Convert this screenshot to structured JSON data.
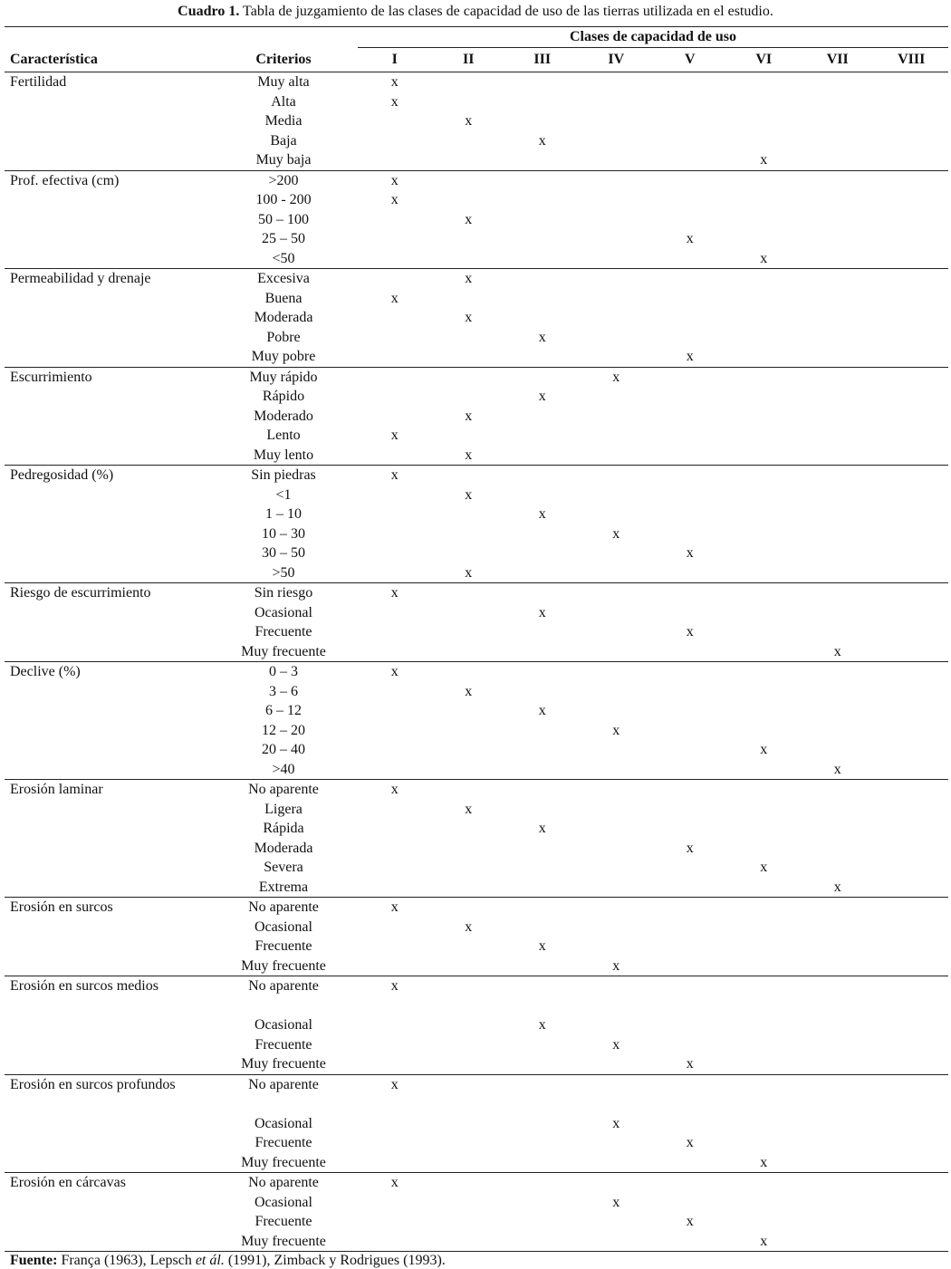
{
  "caption": {
    "label": "Cuadro 1.",
    "text": " Tabla de juzgamiento de las clases de capacidad de uso de las tierras utilizada en el estudio."
  },
  "header": {
    "group_label": "Clases de capacidad de uso",
    "characteristic": "Característica",
    "criteria": "Criterios",
    "classes": [
      "I",
      "II",
      "III",
      "IV",
      "V",
      "VI",
      "VII",
      "VIII"
    ]
  },
  "mark": "x",
  "groups": [
    {
      "characteristic": "Fertilidad",
      "rows": [
        [
          "Muy alta",
          1
        ],
        [
          "Alta",
          1
        ],
        [
          "Media",
          2
        ],
        [
          "Baja",
          3
        ],
        [
          "Muy baja",
          6
        ]
      ]
    },
    {
      "characteristic": "Prof. efectiva (cm)",
      "rows": [
        [
          ">200",
          1
        ],
        [
          "100 - 200",
          1
        ],
        [
          "50 – 100",
          2
        ],
        [
          "25 – 50",
          5
        ],
        [
          "<50",
          6
        ]
      ]
    },
    {
      "characteristic": "Permeabilidad y drenaje",
      "rows": [
        [
          "Excesiva",
          2
        ],
        [
          "Buena",
          1
        ],
        [
          "Moderada",
          2
        ],
        [
          "Pobre",
          3
        ],
        [
          "Muy pobre",
          5
        ]
      ]
    },
    {
      "characteristic": "Escurrimiento",
      "rows": [
        [
          "Muy rápido",
          4
        ],
        [
          "Rápido",
          3
        ],
        [
          "Moderado",
          2
        ],
        [
          "Lento",
          1
        ],
        [
          "Muy lento",
          2
        ]
      ]
    },
    {
      "characteristic": "Pedregosidad (%)",
      "rows": [
        [
          "Sin piedras",
          1
        ],
        [
          "<1",
          2
        ],
        [
          "1 – 10",
          3
        ],
        [
          "10 – 30",
          4
        ],
        [
          "30 – 50",
          5
        ],
        [
          ">50",
          2
        ]
      ]
    },
    {
      "characteristic": "Riesgo de escurrimiento",
      "rows": [
        [
          "Sin riesgo",
          1
        ],
        [
          "Ocasional",
          3
        ],
        [
          "Frecuente",
          5
        ],
        [
          "Muy frecuente",
          7
        ]
      ]
    },
    {
      "characteristic": "Declive (%)",
      "rows": [
        [
          "0 – 3",
          1
        ],
        [
          "3 – 6",
          2
        ],
        [
          "6 – 12",
          3
        ],
        [
          "12 – 20",
          4
        ],
        [
          "20 – 40",
          6
        ],
        [
          ">40",
          7
        ]
      ]
    },
    {
      "characteristic": "Erosión laminar",
      "rows": [
        [
          "No aparente",
          1
        ],
        [
          "Ligera",
          2
        ],
        [
          "Rápida",
          3
        ],
        [
          "Moderada",
          5
        ],
        [
          "Severa",
          6
        ],
        [
          "Extrema",
          7
        ]
      ]
    },
    {
      "characteristic": "Erosión en surcos",
      "rows": [
        [
          "No aparente",
          1
        ],
        [
          "Ocasional",
          2
        ],
        [
          "Frecuente",
          3
        ],
        [
          "Muy frecuente",
          4
        ]
      ]
    },
    {
      "characteristic": "Erosión en surcos medios",
      "rows": [
        [
          "No aparente",
          1
        ],
        [
          "",
          0
        ],
        [
          "Ocasional",
          3
        ],
        [
          "Frecuente",
          4
        ],
        [
          "Muy frecuente",
          5
        ]
      ]
    },
    {
      "characteristic": "Erosión en surcos profundos",
      "rows": [
        [
          "No aparente",
          1
        ],
        [
          "",
          0
        ],
        [
          "Ocasional",
          4
        ],
        [
          "Frecuente",
          5
        ],
        [
          "Muy frecuente",
          6
        ]
      ]
    },
    {
      "characteristic": "Erosión en cárcavas",
      "rows": [
        [
          "No aparente",
          1
        ],
        [
          "Ocasional",
          4
        ],
        [
          "Frecuente",
          5
        ],
        [
          "Muy frecuente",
          6
        ]
      ]
    }
  ],
  "footer": {
    "label": "Fuente:",
    "text1": " França (1963), Lepsch ",
    "italic": "et ál.",
    "text2": " (1991), Zimback y Rodrigues (1993)."
  }
}
